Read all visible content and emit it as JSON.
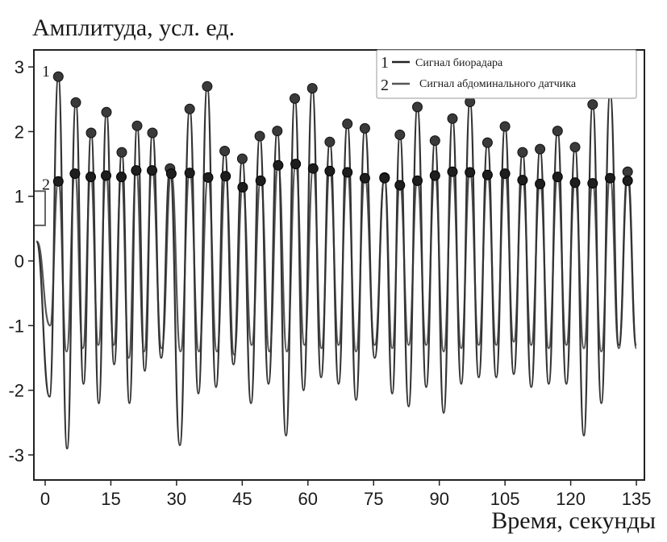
{
  "chart_data": {
    "type": "line",
    "ylabel": "Амплитуда, усл. ед.",
    "xlabel": "Время, секунды",
    "xlim": [
      -2,
      136
    ],
    "ylim": [
      -3.4,
      3.4
    ],
    "xticks": [
      0,
      15,
      30,
      45,
      60,
      75,
      90,
      105,
      120,
      135
    ],
    "yticks": [
      3,
      2,
      1,
      0,
      -1,
      -2,
      -3
    ],
    "legend": {
      "position": "top-right",
      "entries": [
        {
          "number": "1",
          "label": "Сигнал биорадара"
        },
        {
          "number": "2",
          "label": "Сигнал абдоминального датчика"
        }
      ]
    },
    "series": [
      {
        "number": "1",
        "name": "Сигнал биорадара",
        "color": "#333333",
        "peaks_x": [
          3,
          7,
          10.5,
          14,
          17.5,
          21,
          24.5,
          28.5,
          33,
          37,
          41,
          45,
          49,
          53,
          57,
          61,
          65,
          69,
          73,
          77.5,
          81,
          85,
          89,
          93,
          97,
          101,
          105,
          109,
          113,
          117,
          121,
          125,
          129,
          133
        ],
        "peaks_y": [
          2.85,
          2.45,
          1.98,
          2.3,
          1.68,
          2.09,
          1.98,
          1.43,
          2.35,
          2.7,
          1.7,
          1.58,
          1.93,
          2.01,
          2.51,
          2.67,
          1.84,
          2.12,
          2.05,
          1.29,
          1.95,
          2.38,
          1.86,
          2.2,
          2.46,
          1.83,
          2.08,
          1.68,
          1.73,
          2.01,
          1.76,
          2.42,
          2.6,
          1.38
        ],
        "troughs_y": [
          -2.1,
          -2.9,
          -1.9,
          -2.2,
          -1.6,
          -2.2,
          -1.7,
          -1.5,
          -2.85,
          -2.05,
          -1.95,
          -1.6,
          -2.2,
          -1.9,
          -2.7,
          -2.0,
          -1.8,
          -1.9,
          -2.15,
          -1.5,
          -2.05,
          -2.25,
          -1.95,
          -2.35,
          -1.9,
          -1.8,
          -1.8,
          -1.75,
          -1.95,
          -1.9,
          -1.9,
          -2.7,
          -2.2,
          -1.3
        ]
      },
      {
        "number": "2",
        "name": "Сигнал абдоминального датчика",
        "color": "#555555",
        "peaks_x": [
          3,
          6.8,
          10.4,
          13.9,
          17.4,
          20.8,
          24.4,
          28.8,
          33,
          37.2,
          41.2,
          45.1,
          49.2,
          53.2,
          57.2,
          61.2,
          65,
          69,
          73,
          77.5,
          81,
          85,
          89,
          93,
          97,
          101,
          105,
          109,
          113,
          117,
          121,
          125,
          129,
          133
        ],
        "peaks_y": [
          1.23,
          1.35,
          1.3,
          1.32,
          1.3,
          1.4,
          1.4,
          1.35,
          1.36,
          1.29,
          1.31,
          1.14,
          1.24,
          1.48,
          1.5,
          1.43,
          1.39,
          1.37,
          1.28,
          1.28,
          1.17,
          1.24,
          1.32,
          1.38,
          1.37,
          1.33,
          1.35,
          1.25,
          1.19,
          1.3,
          1.21,
          1.2,
          1.28,
          1.24
        ],
        "troughs_y": [
          -1.0,
          -1.4,
          -1.35,
          -1.3,
          -1.3,
          -1.5,
          -1.4,
          -1.35,
          -1.4,
          -1.4,
          -1.4,
          -1.45,
          -1.3,
          -1.4,
          -1.4,
          -1.3,
          -1.35,
          -1.3,
          -1.4,
          -1.3,
          -1.35,
          -1.3,
          -1.3,
          -1.4,
          -1.35,
          -1.3,
          -1.3,
          -1.25,
          -1.3,
          -1.35,
          -1.3,
          -1.35,
          -1.4,
          -1.35
        ]
      }
    ]
  }
}
